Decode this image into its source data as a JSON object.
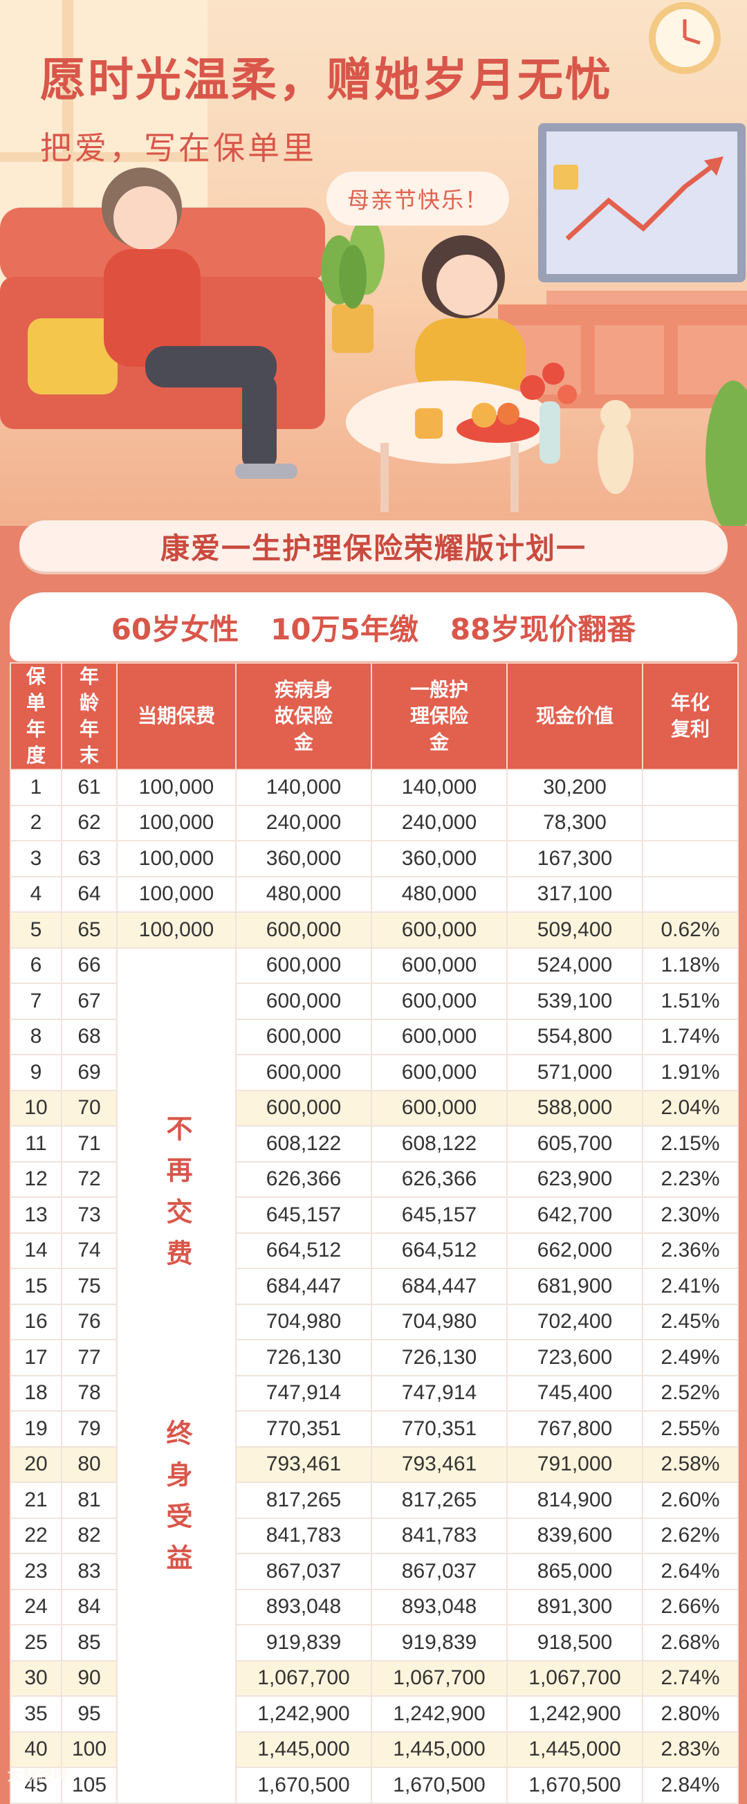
{
  "hero": {
    "title": "愿时光温柔，赠她岁月无忧",
    "subtitle": "把爱，写在保单里",
    "bubble_text": "母亲节快乐！"
  },
  "plan_name": "康爱一生护理保险荣耀版计划一",
  "spec": {
    "age_gender": "60岁女性",
    "premium_term": "10万5年缴",
    "double_note": "88岁现价翻番"
  },
  "table": {
    "headers": {
      "policy_year": "保单年度",
      "age_end": "年龄年末",
      "premium": "当期保费",
      "death_benefit": "疾病身故保险金",
      "care_benefit": "一般护理保险金",
      "cash_value": "现金价值",
      "annual_rate": "年化复利"
    },
    "no_pay_text": "不再交费",
    "lifetime_text": "终身受益",
    "rows": [
      {
        "year": "1",
        "age": "61",
        "premium": "100,000",
        "death": "140,000",
        "care": "140,000",
        "cash": "30,200",
        "rate": ""
      },
      {
        "year": "2",
        "age": "62",
        "premium": "100,000",
        "death": "240,000",
        "care": "240,000",
        "cash": "78,300",
        "rate": ""
      },
      {
        "year": "3",
        "age": "63",
        "premium": "100,000",
        "death": "360,000",
        "care": "360,000",
        "cash": "167,300",
        "rate": ""
      },
      {
        "year": "4",
        "age": "64",
        "premium": "100,000",
        "death": "480,000",
        "care": "480,000",
        "cash": "317,100",
        "rate": ""
      },
      {
        "year": "5",
        "age": "65",
        "premium": "100,000",
        "death": "600,000",
        "care": "600,000",
        "cash": "509,400",
        "rate": "0.62%"
      },
      {
        "year": "6",
        "age": "66",
        "death": "600,000",
        "care": "600,000",
        "cash": "524,000",
        "rate": "1.18%"
      },
      {
        "year": "7",
        "age": "67",
        "death": "600,000",
        "care": "600,000",
        "cash": "539,100",
        "rate": "1.51%"
      },
      {
        "year": "8",
        "age": "68",
        "death": "600,000",
        "care": "600,000",
        "cash": "554,800",
        "rate": "1.74%"
      },
      {
        "year": "9",
        "age": "69",
        "death": "600,000",
        "care": "600,000",
        "cash": "571,000",
        "rate": "1.91%"
      },
      {
        "year": "10",
        "age": "70",
        "death": "600,000",
        "care": "600,000",
        "cash": "588,000",
        "rate": "2.04%"
      },
      {
        "year": "11",
        "age": "71",
        "death": "608,122",
        "care": "608,122",
        "cash": "605,700",
        "rate": "2.15%"
      },
      {
        "year": "12",
        "age": "72",
        "death": "626,366",
        "care": "626,366",
        "cash": "623,900",
        "rate": "2.23%"
      },
      {
        "year": "13",
        "age": "73",
        "death": "645,157",
        "care": "645,157",
        "cash": "642,700",
        "rate": "2.30%"
      },
      {
        "year": "14",
        "age": "74",
        "death": "664,512",
        "care": "664,512",
        "cash": "662,000",
        "rate": "2.36%"
      },
      {
        "year": "15",
        "age": "75",
        "death": "684,447",
        "care": "684,447",
        "cash": "681,900",
        "rate": "2.41%"
      },
      {
        "year": "16",
        "age": "76",
        "death": "704,980",
        "care": "704,980",
        "cash": "702,400",
        "rate": "2.45%"
      },
      {
        "year": "17",
        "age": "77",
        "death": "726,130",
        "care": "726,130",
        "cash": "723,600",
        "rate": "2.49%"
      },
      {
        "year": "18",
        "age": "78",
        "death": "747,914",
        "care": "747,914",
        "cash": "745,400",
        "rate": "2.52%"
      },
      {
        "year": "19",
        "age": "79",
        "death": "770,351",
        "care": "770,351",
        "cash": "767,800",
        "rate": "2.55%"
      },
      {
        "year": "20",
        "age": "80",
        "death": "793,461",
        "care": "793,461",
        "cash": "791,000",
        "rate": "2.58%"
      },
      {
        "year": "21",
        "age": "81",
        "death": "817,265",
        "care": "817,265",
        "cash": "814,900",
        "rate": "2.60%"
      },
      {
        "year": "22",
        "age": "82",
        "death": "841,783",
        "care": "841,783",
        "cash": "839,600",
        "rate": "2.62%"
      },
      {
        "year": "23",
        "age": "83",
        "death": "867,037",
        "care": "867,037",
        "cash": "865,000",
        "rate": "2.64%"
      },
      {
        "year": "24",
        "age": "84",
        "death": "893,048",
        "care": "893,048",
        "cash": "891,300",
        "rate": "2.66%"
      },
      {
        "year": "25",
        "age": "85",
        "death": "919,839",
        "care": "919,839",
        "cash": "918,500",
        "rate": "2.68%"
      },
      {
        "year": "30",
        "age": "90",
        "death": "1,067,700",
        "care": "1,067,700",
        "cash": "1,067,700",
        "rate": "2.74%"
      },
      {
        "year": "35",
        "age": "95",
        "death": "1,242,900",
        "care": "1,242,900",
        "cash": "1,242,900",
        "rate": "2.80%"
      },
      {
        "year": "40",
        "age": "100",
        "death": "1,445,000",
        "care": "1,445,000",
        "cash": "1,445,000",
        "rate": "2.83%"
      },
      {
        "year": "45",
        "age": "105",
        "death": "1,670,500",
        "care": "1,670,500",
        "cash": "1,670,500",
        "rate": "2.84%"
      }
    ]
  },
  "footer": {
    "logo_text": "大数跨境"
  },
  "colors": {
    "accent": "#e2604e",
    "highlight_row": "#fdf4dd",
    "background": "#e9826a"
  }
}
